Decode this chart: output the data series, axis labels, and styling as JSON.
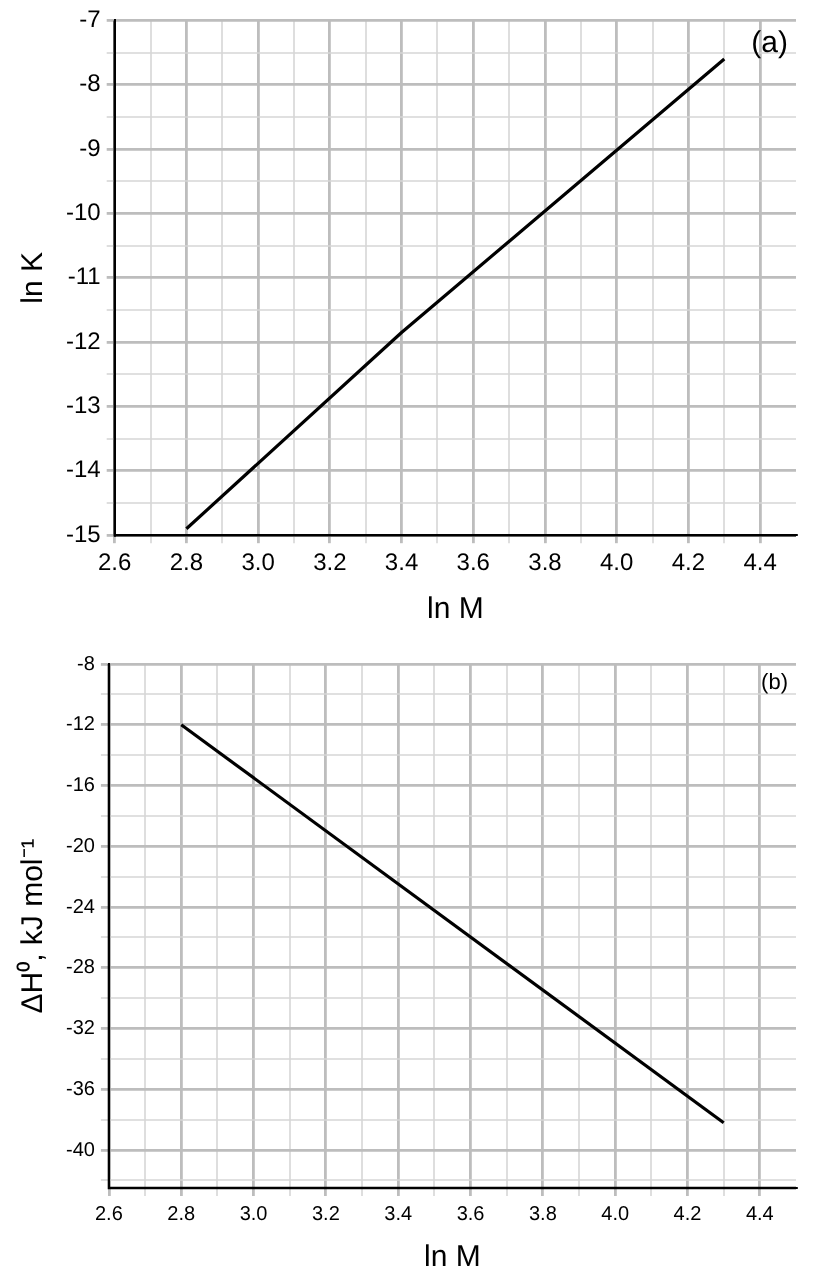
{
  "chart_data": [
    {
      "type": "line",
      "xlabel": "ln M",
      "ylabel": "ln K",
      "annotations": [
        "(a)"
      ],
      "x": [
        2.8,
        3.4,
        4.3
      ],
      "series": [
        {
          "color": "#000000",
          "values": [
            -14.9,
            -11.85,
            -7.6
          ]
        }
      ],
      "xlim": [
        2.6,
        4.5
      ],
      "xticks": [
        {
          "value": 2.6,
          "label": "2.6"
        },
        {
          "value": 2.7,
          "label": null
        },
        {
          "value": 2.8,
          "label": "2.8"
        },
        {
          "value": 2.9,
          "label": null
        },
        {
          "value": 3.0,
          "label": "3.0"
        },
        {
          "value": 3.1,
          "label": null
        },
        {
          "value": 3.2,
          "label": "3.2"
        },
        {
          "value": 3.3,
          "label": null
        },
        {
          "value": 3.4,
          "label": "3.4"
        },
        {
          "value": 3.5,
          "label": null
        },
        {
          "value": 3.6,
          "label": "3.6"
        },
        {
          "value": 3.7,
          "label": null
        },
        {
          "value": 3.8,
          "label": "3.8"
        },
        {
          "value": 3.9,
          "label": null
        },
        {
          "value": 4.0,
          "label": "4.0"
        },
        {
          "value": 4.1,
          "label": null
        },
        {
          "value": 4.2,
          "label": "4.2"
        },
        {
          "value": 4.3,
          "label": null
        },
        {
          "value": 4.4,
          "label": "4.4"
        }
      ],
      "ylim": [
        -15,
        -7
      ],
      "yticks": [
        -15,
        {
          "value": -14.5,
          "label": null
        },
        -14,
        {
          "value": -13.5,
          "label": null
        },
        -13,
        {
          "value": -12.5,
          "label": null
        },
        -12,
        {
          "value": -11.5,
          "label": null
        },
        -11,
        {
          "value": -10.5,
          "label": null
        },
        -10,
        {
          "value": -9.5,
          "label": null
        },
        -9,
        {
          "value": -8.5,
          "label": null
        },
        -8,
        {
          "value": -7.5,
          "label": null
        },
        -7
      ],
      "grid": true,
      "legend": false,
      "marker": "none",
      "line_style": "solid"
    },
    {
      "type": "line",
      "xlabel": "ln M",
      "ylabel": "ΔH⁰, kJ mol⁻¹",
      "annotations": [
        "(b)"
      ],
      "x": [
        2.8,
        4.3
      ],
      "series": [
        {
          "color": "#000000",
          "values": [
            -12,
            -38.2
          ]
        }
      ],
      "xlim": [
        2.6,
        4.5
      ],
      "xticks": [
        {
          "value": 2.6,
          "label": "2.6"
        },
        {
          "value": 2.7,
          "label": null
        },
        {
          "value": 2.8,
          "label": "2.8"
        },
        {
          "value": 2.9,
          "label": null
        },
        {
          "value": 3.0,
          "label": "3.0"
        },
        {
          "value": 3.1,
          "label": null
        },
        {
          "value": 3.2,
          "label": "3.2"
        },
        {
          "value": 3.3,
          "label": null
        },
        {
          "value": 3.4,
          "label": "3.4"
        },
        {
          "value": 3.5,
          "label": null
        },
        {
          "value": 3.6,
          "label": "3.6"
        },
        {
          "value": 3.7,
          "label": null
        },
        {
          "value": 3.8,
          "label": "3.8"
        },
        {
          "value": 3.9,
          "label": null
        },
        {
          "value": 4.0,
          "label": "4.0"
        },
        {
          "value": 4.1,
          "label": null
        },
        {
          "value": 4.2,
          "label": "4.2"
        },
        {
          "value": 4.3,
          "label": null
        },
        {
          "value": 4.4,
          "label": "4.4"
        }
      ],
      "ylim": [
        -42.5,
        -8
      ],
      "yticks": [
        {
          "value": -42,
          "label": null
        },
        -40,
        {
          "value": -38,
          "label": null
        },
        -36,
        {
          "value": -34,
          "label": null
        },
        -32,
        {
          "value": -30,
          "label": null
        },
        -28,
        {
          "value": -26,
          "label": null
        },
        -24,
        {
          "value": -22,
          "label": null
        },
        -20,
        {
          "value": -18,
          "label": null
        },
        -16,
        {
          "value": -14,
          "label": null
        },
        -12,
        {
          "value": -10,
          "label": null
        },
        -8
      ],
      "grid": true,
      "legend": false,
      "marker": "none",
      "line_style": "solid"
    }
  ]
}
